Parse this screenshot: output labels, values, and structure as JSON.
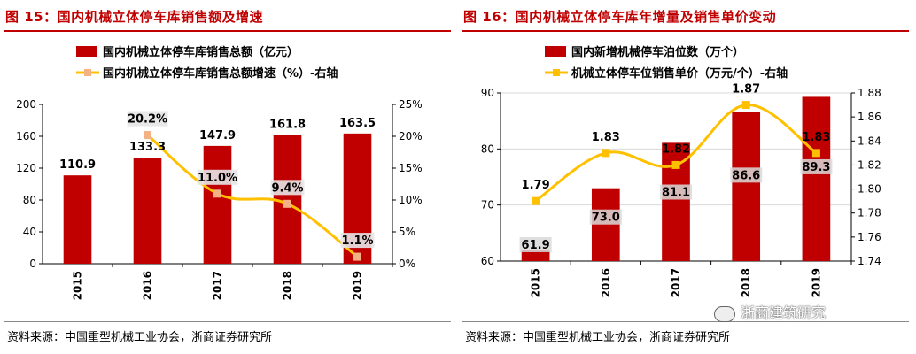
{
  "colors": {
    "bar": "#c00000",
    "line": "#ffc000",
    "marker_left": "#f4b183",
    "title": "#c00000"
  },
  "left": {
    "title": "图 15：国内机械立体停车库销售额及增速",
    "source": "资料来源：中国重型机械工业协会，浙商证券研究所",
    "chart_data": {
      "type": "bar+line",
      "categories": [
        "2015",
        "2016",
        "2017",
        "2018",
        "2019"
      ],
      "series": [
        {
          "name": "国内机械立体停车库销售总额（亿元）",
          "type": "bar",
          "axis": "left",
          "values": [
            110.9,
            133.3,
            147.9,
            161.8,
            163.5
          ],
          "labels": [
            "110.9",
            "133.3",
            "147.9",
            "161.8",
            "163.5"
          ]
        },
        {
          "name": "国内机械立体停车库销售总额增速（%）-右轴",
          "type": "line",
          "axis": "right",
          "values": [
            null,
            20.2,
            11.0,
            9.4,
            1.1
          ],
          "labels": [
            "",
            "20.2%",
            "11.0%",
            "9.4%",
            "1.1%"
          ]
        }
      ],
      "ylim_left": [
        0,
        200
      ],
      "yticks_left": [
        "0",
        "40",
        "80",
        "120",
        "160",
        "200"
      ],
      "ylim_right": [
        0,
        25
      ],
      "yticks_right": [
        "0%",
        "5%",
        "10%",
        "15%",
        "20%",
        "25%"
      ],
      "legend": "top"
    }
  },
  "right": {
    "title": "图 16：国内机械立体停车库年增量及销售单价变动",
    "source": "资料来源：中国重型机械工业协会，浙商证券研究所",
    "chart_data": {
      "type": "bar+line",
      "categories": [
        "2015",
        "2016",
        "2017",
        "2018",
        "2019"
      ],
      "series": [
        {
          "name": "国内新增机械停车泊位数（万个）",
          "type": "bar",
          "axis": "left",
          "values": [
            61.9,
            73.0,
            81.1,
            86.6,
            89.3
          ],
          "labels": [
            "61.9",
            "73.0",
            "81.1",
            "86.6",
            "89.3"
          ]
        },
        {
          "name": "机械立体停车位销售单价（万元/个）-右轴",
          "type": "line",
          "axis": "right",
          "values": [
            1.79,
            1.83,
            1.82,
            1.87,
            1.83
          ],
          "labels": [
            "1.79",
            "1.83",
            "1.82",
            "1.87",
            "1.83"
          ]
        }
      ],
      "ylim_left": [
        60,
        90
      ],
      "yticks_left": [
        "60",
        "70",
        "80",
        "90"
      ],
      "ylim_right": [
        1.74,
        1.88
      ],
      "yticks_right": [
        "1.74",
        "1.76",
        "1.78",
        "1.80",
        "1.82",
        "1.84",
        "1.86",
        "1.88"
      ],
      "legend": "top"
    }
  },
  "watermark": "浙商建筑研究"
}
